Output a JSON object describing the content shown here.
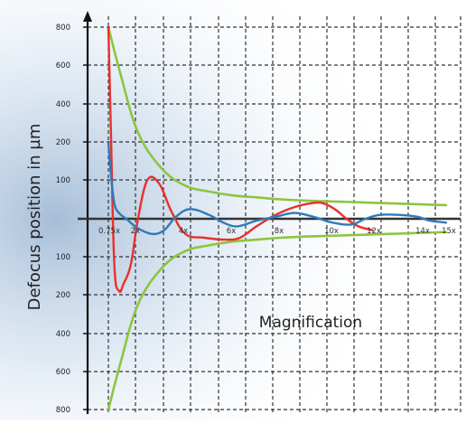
{
  "chart_data": {
    "type": "line",
    "ylabel": "Defocus position in µm",
    "xlabel": "Magnification",
    "y_tick_labels_top": [
      "800",
      "600",
      "400",
      "200",
      "100"
    ],
    "y_tick_labels_bottom": [
      "100",
      "200",
      "400",
      "600",
      "800"
    ],
    "x_tick_labels": [
      "0.75x",
      "2x",
      "4x",
      "6x",
      "8x",
      "10x",
      "12x",
      "14x",
      "15x"
    ],
    "grid": true,
    "series": [
      {
        "color": "#8cc540",
        "x": [
          0.75,
          1.25,
          2,
          3,
          4,
          5,
          6,
          7,
          8,
          9,
          10,
          11,
          12,
          13,
          14,
          15
        ],
        "y": [
          800,
          560,
          250,
          130,
          85,
          70,
          60,
          55,
          50,
          47,
          45,
          43,
          41,
          39,
          37,
          35
        ]
      },
      {
        "color": "#8cc540",
        "x": [
          0.75,
          1.25,
          2,
          3,
          4,
          5,
          6,
          7,
          8,
          9,
          10,
          11,
          12,
          13,
          14,
          15
        ],
        "y": [
          -800,
          -560,
          -250,
          -130,
          -85,
          -70,
          -60,
          -55,
          -50,
          -47,
          -45,
          -43,
          -41,
          -39,
          -37,
          -35
        ]
      },
      {
        "color": "#e8312a",
        "x": [
          0.75,
          0.85,
          1.0,
          1.2,
          1.4,
          1.7,
          2.0,
          2.4,
          2.9,
          3.4,
          4.0,
          4.8,
          5.7,
          6.3,
          7.0,
          7.8,
          8.6,
          9.3,
          9.8,
          10.3,
          10.8,
          11.3,
          11.9
        ],
        "y": [
          800,
          300,
          -120,
          -190,
          -170,
          -120,
          0,
          100,
          90,
          20,
          -40,
          -50,
          -55,
          -50,
          -20,
          10,
          30,
          40,
          40,
          25,
          0,
          -20,
          -30
        ]
      },
      {
        "color": "#2f7ab9",
        "x": [
          0.75,
          0.85,
          1.0,
          1.2,
          1.5,
          2.0,
          2.6,
          3.1,
          3.6,
          4.2,
          5.0,
          5.6,
          6.2,
          7.0,
          7.8,
          8.6,
          9.4,
          10.2,
          11.0,
          11.6,
          12.2,
          13.0,
          13.8,
          14.3,
          15.0
        ],
        "y": [
          200,
          120,
          40,
          15,
          0,
          -25,
          -40,
          -30,
          5,
          25,
          10,
          -10,
          -20,
          -5,
          5,
          15,
          5,
          -10,
          -15,
          0,
          10,
          10,
          5,
          -5,
          -10
        ]
      }
    ]
  }
}
